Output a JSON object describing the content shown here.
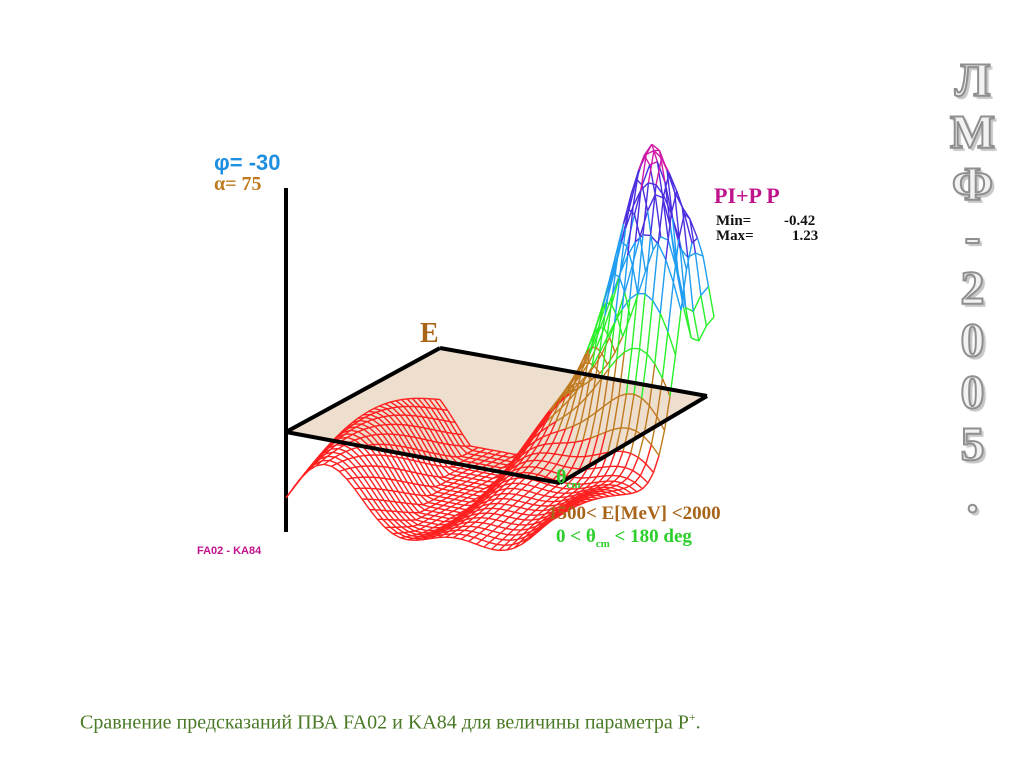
{
  "chart_data": {
    "type": "surface-3d",
    "title": "PI+P P",
    "view": {
      "phi_label": "φ= -30",
      "alpha_label": "α=  75"
    },
    "stats": {
      "min_label": "Min=",
      "min_value": "-0.42",
      "max_label": "Max=",
      "max_value": "1.23"
    },
    "axes": {
      "e_label": "E",
      "theta_label": "θ",
      "theta_sub": "cm"
    },
    "ranges": {
      "energy_text": "1500< E[MeV] <2000",
      "theta_prefix": " 0 < θ",
      "theta_sub": "cm",
      "theta_suffix": " < 180 deg"
    },
    "models_label": "FA02 - KA84",
    "z_min": -0.42,
    "z_max": 1.23,
    "color_bands": [
      {
        "from": -0.42,
        "to": -0.1,
        "color": "#ff2020"
      },
      {
        "from": -0.1,
        "to": 0.2,
        "color": "#c07a1e"
      },
      {
        "from": 0.2,
        "to": 0.45,
        "color": "#29f029"
      },
      {
        "from": 0.45,
        "to": 0.75,
        "color": "#1e9df2"
      },
      {
        "from": 0.75,
        "to": 1.05,
        "color": "#4a2ee0"
      },
      {
        "from": 1.05,
        "to": 1.23,
        "color": "#d01ba8"
      }
    ]
  },
  "colors": {
    "phi": "#1f8fe0",
    "alpha": "#c07a1e",
    "axis_e": "#a8651a",
    "theta": "#2ccf2c",
    "title": "#c0148c",
    "stats": "#111111",
    "energy_range": "#a8651a",
    "theta_range": "#2ccf2c",
    "models": "#c0148c"
  },
  "caption": {
    "text": "Сравнение предсказаний ПВА FA02 и KA84 для величины параметра P",
    "sup": "+",
    "end": "."
  },
  "stamp": {
    "chars": [
      "Л",
      "М",
      "Ф",
      "-",
      "2",
      "0",
      "0",
      "5",
      "."
    ]
  }
}
